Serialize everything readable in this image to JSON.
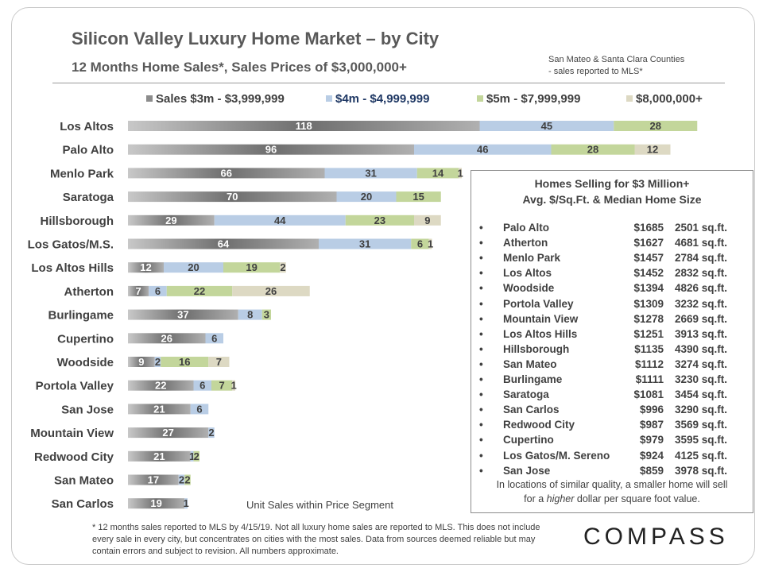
{
  "header": {
    "title": "Silicon Valley Luxury Home Market – by City",
    "subtitle": "12 Months Home Sales*, Sales Prices of $3,000,000+",
    "source_note_1": "San Mateo & Santa Clara Counties",
    "source_note_2": "- sales reported to MLS*"
  },
  "chart_data": {
    "type": "bar",
    "orientation": "horizontal",
    "stacked": true,
    "xlabel": "Unit Sales within Price Segment",
    "categories": [
      "Los Altos",
      "Palo Alto",
      "Menlo Park",
      "Saratoga",
      "Hillsborough",
      "Los Gatos/M.S.",
      "Los Altos Hills",
      "Atherton",
      "Burlingame",
      "Cupertino",
      "Woodside",
      "Portola Valley",
      "San Jose",
      "Mountain View",
      "Redwood City",
      "San Mateo",
      "San Carlos"
    ],
    "series": [
      {
        "name": "Sales $3m - $3,999,999",
        "color": "#8c8c8c",
        "values": [
          118,
          96,
          66,
          70,
          29,
          64,
          12,
          7,
          37,
          26,
          9,
          22,
          21,
          27,
          21,
          17,
          19
        ]
      },
      {
        "name": "$4m - $4,999,999",
        "color": "#b9cde5",
        "values": [
          45,
          46,
          31,
          20,
          44,
          31,
          20,
          6,
          8,
          6,
          2,
          6,
          6,
          2,
          1,
          2,
          1
        ]
      },
      {
        "name": "$5m - $7,999,999",
        "color": "#c3d69b",
        "values": [
          28,
          28,
          14,
          15,
          23,
          6,
          19,
          22,
          3,
          0,
          16,
          7,
          0,
          0,
          2,
          2,
          0
        ]
      },
      {
        "name": "$8,000,000+",
        "color": "#ddd9c3",
        "values": [
          0,
          12,
          1,
          0,
          9,
          1,
          2,
          26,
          0,
          0,
          7,
          1,
          0,
          0,
          0,
          0,
          0
        ]
      }
    ],
    "grid": false,
    "legend": "top"
  },
  "legend_colors": {
    "text_1": "#404040",
    "text_2": "#1f3864",
    "text_3": "#404040",
    "text_4": "#404040"
  },
  "info_box": {
    "title_1": "Homes Selling for $3 Million+",
    "title_2": "Avg. $/Sq.Ft. & Median Home Size",
    "bullet": "•",
    "rows": [
      {
        "city": "Palo Alto",
        "price": "$1685",
        "size": "2501 sq.ft."
      },
      {
        "city": "Atherton",
        "price": "$1627",
        "size": "4681 sq.ft."
      },
      {
        "city": "Menlo Park",
        "price": "$1457",
        "size": "2784 sq.ft."
      },
      {
        "city": "Los Altos",
        "price": "$1452",
        "size": "2832 sq.ft."
      },
      {
        "city": "Woodside",
        "price": "$1394",
        "size": "4826 sq.ft."
      },
      {
        "city": "Portola Valley",
        "price": "$1309",
        "size": "3232 sq.ft."
      },
      {
        "city": "Mountain View",
        "price": "$1278",
        "size": "2669 sq.ft."
      },
      {
        "city": "Los Altos Hills",
        "price": "$1251",
        "size": "3913 sq.ft."
      },
      {
        "city": "Hillsborough",
        "price": "$1135",
        "size": "4390 sq.ft."
      },
      {
        "city": "San Mateo",
        "price": "$1112",
        "size": "3274 sq.ft."
      },
      {
        "city": "Burlingame",
        "price": "$1111",
        "size": "3230 sq.ft."
      },
      {
        "city": "Saratoga",
        "price": "$1081",
        "size": "3454 sq.ft."
      },
      {
        "city": "San Carlos",
        "price": "$996",
        "size": "3290 sq.ft."
      },
      {
        "city": "Redwood City",
        "price": "$987",
        "size": "3569 sq.ft."
      },
      {
        "city": "Cupertino",
        "price": "$979",
        "size": "3595 sq.ft."
      },
      {
        "city": "Los Gatos/M. Sereno",
        "price": "$924",
        "size": "4125 sq.ft."
      },
      {
        "city": "San Jose",
        "price": "$859",
        "size": "3978 sq.ft."
      }
    ],
    "note_1": "In locations of similar quality, a smaller home will sell",
    "note_2_a": "for a ",
    "note_2_b": "higher",
    "note_2_c": " dollar per square foot value."
  },
  "footnote": "* 12 months sales reported to MLS by 4/15/19. Not all luxury home sales are reported to MLS. This does not include every sale in every city, but concentrates on cities with the most sales. Data from sources deemed reliable but may contain errors and subject to revision. All numbers approximate.",
  "logo": "COMPASS"
}
